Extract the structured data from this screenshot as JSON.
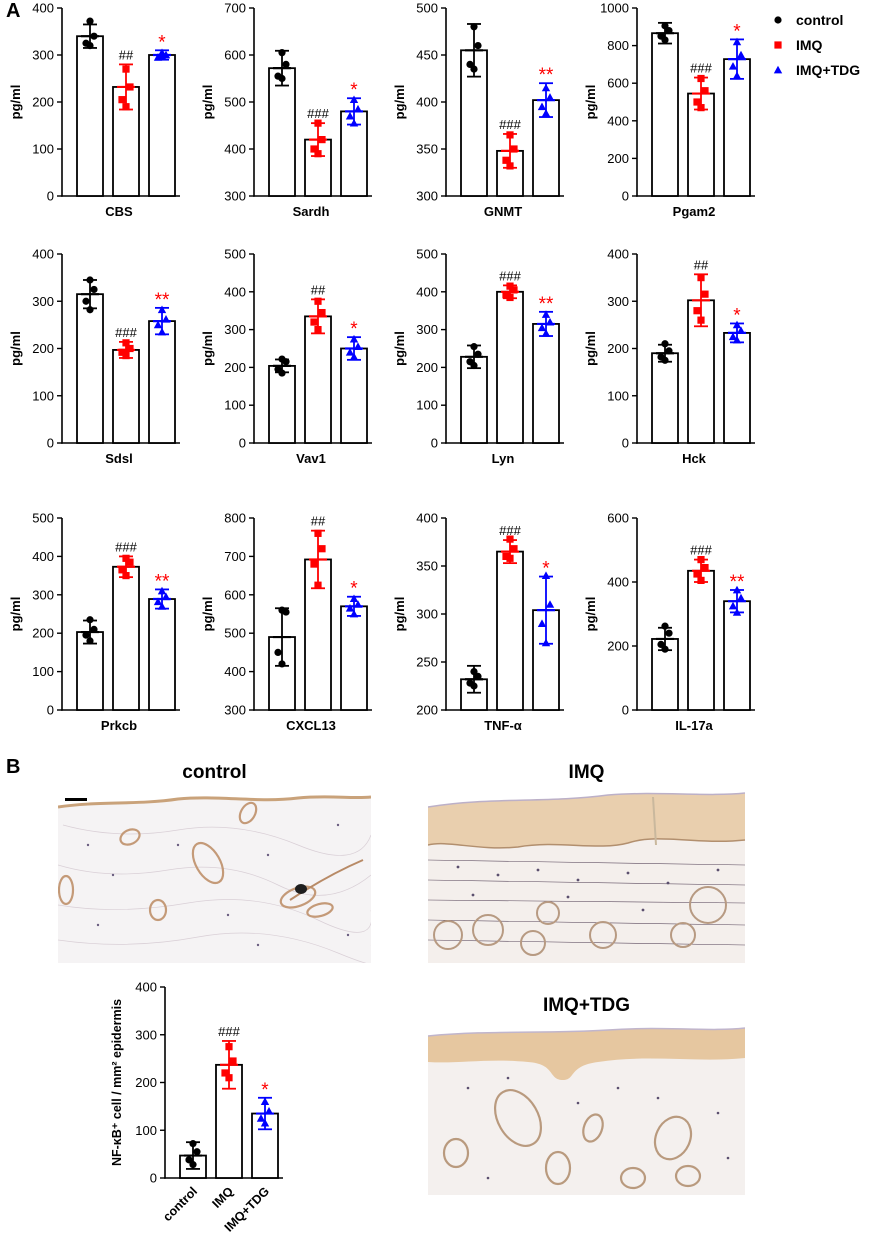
{
  "panels": {
    "a_label": "A",
    "b_label": "B"
  },
  "legend": [
    {
      "name": "control",
      "marker": "circle",
      "color": "#000000"
    },
    {
      "name": "IMQ",
      "marker": "square",
      "color": "#ff0000"
    },
    {
      "name": "IMQ+TDG",
      "marker": "triangle",
      "color": "#0000ff"
    }
  ],
  "colors": {
    "control": "#000000",
    "IMQ": "#ff0000",
    "IMQ+TDG": "#0000ff"
  },
  "chart_data": [
    {
      "type": "bar",
      "title": "",
      "xlabel": "CBS",
      "ylabel": "pg/ml",
      "ylim": [
        0,
        400
      ],
      "yticks": [
        0,
        100,
        200,
        300,
        400
      ],
      "categories": [
        "control",
        "IMQ",
        "IMQ+TDG"
      ],
      "values": [
        340,
        232,
        300
      ],
      "errors": [
        25,
        48,
        10
      ],
      "points": [
        [
          372,
          340,
          325,
          320
        ],
        [
          270,
          232,
          205,
          190
        ],
        [
          305,
          300,
          295,
          298
        ]
      ],
      "annotations": [
        {
          "text": "",
          "color": "#000000"
        },
        {
          "text": "##",
          "color": "#000000"
        },
        {
          "text": "*",
          "color": "#ff0000"
        }
      ]
    },
    {
      "type": "bar",
      "title": "",
      "xlabel": "Sardh",
      "ylabel": "pg/ml",
      "ylim": [
        300,
        700
      ],
      "yticks": [
        300,
        400,
        500,
        600,
        700
      ],
      "categories": [
        "control",
        "IMQ",
        "IMQ+TDG"
      ],
      "values": [
        572,
        420,
        480
      ],
      "errors": [
        37,
        35,
        28
      ],
      "points": [
        [
          605,
          580,
          555,
          550
        ],
        [
          455,
          420,
          400,
          390
        ],
        [
          505,
          485,
          470,
          455
        ]
      ],
      "annotations": [
        {
          "text": "",
          "color": "#000000"
        },
        {
          "text": "###",
          "color": "#000000"
        },
        {
          "text": "*",
          "color": "#ff0000"
        }
      ]
    },
    {
      "type": "bar",
      "title": "",
      "xlabel": "GNMT",
      "ylabel": "pg/ml",
      "ylim": [
        300,
        500
      ],
      "yticks": [
        300,
        350,
        400,
        450,
        500
      ],
      "categories": [
        "control",
        "IMQ",
        "IMQ+TDG"
      ],
      "values": [
        455,
        348,
        402
      ],
      "errors": [
        28,
        18,
        18
      ],
      "points": [
        [
          480,
          460,
          440,
          435
        ],
        [
          365,
          350,
          338,
          332
        ],
        [
          415,
          405,
          395,
          388
        ]
      ],
      "annotations": [
        {
          "text": "",
          "color": "#000000"
        },
        {
          "text": "###",
          "color": "#000000"
        },
        {
          "text": "**",
          "color": "#ff0000"
        }
      ]
    },
    {
      "type": "bar",
      "title": "",
      "xlabel": "Pgam2",
      "ylabel": "pg/ml",
      "ylim": [
        0,
        1000
      ],
      "yticks": [
        0,
        200,
        400,
        600,
        800,
        1000
      ],
      "categories": [
        "control",
        "IMQ",
        "IMQ+TDG"
      ],
      "values": [
        866,
        545,
        728
      ],
      "errors": [
        55,
        85,
        105
      ],
      "points": [
        [
          905,
          880,
          850,
          830
        ],
        [
          625,
          560,
          500,
          470
        ],
        [
          820,
          750,
          690,
          640
        ]
      ],
      "annotations": [
        {
          "text": "",
          "color": "#000000"
        },
        {
          "text": "###",
          "color": "#000000"
        },
        {
          "text": "*",
          "color": "#ff0000"
        }
      ]
    },
    {
      "type": "bar",
      "title": "",
      "xlabel": "Sdsl",
      "ylabel": "pg/ml",
      "ylim": [
        0,
        400
      ],
      "yticks": [
        0,
        100,
        200,
        300,
        400
      ],
      "categories": [
        "control",
        "IMQ",
        "IMQ+TDG"
      ],
      "values": [
        315,
        197,
        258
      ],
      "errors": [
        30,
        17,
        28
      ],
      "points": [
        [
          345,
          325,
          300,
          282
        ],
        [
          212,
          200,
          192,
          185
        ],
        [
          282,
          262,
          250,
          235
        ]
      ],
      "annotations": [
        {
          "text": "",
          "color": "#000000"
        },
        {
          "text": "###",
          "color": "#000000"
        },
        {
          "text": "**",
          "color": "#ff0000"
        }
      ]
    },
    {
      "type": "bar",
      "title": "",
      "xlabel": "Vav1",
      "ylabel": "pg/ml",
      "ylim": [
        0,
        500
      ],
      "yticks": [
        0,
        100,
        200,
        300,
        400,
        500
      ],
      "categories": [
        "control",
        "IMQ",
        "IMQ+TDG"
      ],
      "values": [
        204,
        335,
        250
      ],
      "errors": [
        17,
        45,
        30
      ],
      "points": [
        [
          222,
          215,
          195,
          185
        ],
        [
          375,
          345,
          320,
          300
        ],
        [
          275,
          255,
          240,
          228
        ]
      ],
      "annotations": [
        {
          "text": "",
          "color": "#000000"
        },
        {
          "text": "##",
          "color": "#000000"
        },
        {
          "text": "*",
          "color": "#ff0000"
        }
      ]
    },
    {
      "type": "bar",
      "title": "",
      "xlabel": "Lyn",
      "ylabel": "pg/ml",
      "ylim": [
        0,
        500
      ],
      "yticks": [
        0,
        100,
        200,
        300,
        400,
        500
      ],
      "categories": [
        "control",
        "IMQ",
        "IMQ+TDG"
      ],
      "values": [
        228,
        400,
        315
      ],
      "errors": [
        30,
        17,
        32
      ],
      "points": [
        [
          255,
          235,
          215,
          205
        ],
        [
          415,
          405,
          392,
          385
        ],
        [
          340,
          320,
          305,
          290
        ]
      ],
      "annotations": [
        {
          "text": "",
          "color": "#000000"
        },
        {
          "text": "###",
          "color": "#000000"
        },
        {
          "text": "**",
          "color": "#ff0000"
        }
      ]
    },
    {
      "type": "bar",
      "title": "",
      "xlabel": "Hck",
      "ylabel": "pg/ml",
      "ylim": [
        0,
        400
      ],
      "yticks": [
        0,
        100,
        200,
        300,
        400
      ],
      "categories": [
        "control",
        "IMQ",
        "IMQ+TDG"
      ],
      "values": [
        190,
        302,
        233
      ],
      "errors": [
        18,
        55,
        20
      ],
      "points": [
        [
          210,
          195,
          182,
          175
        ],
        [
          350,
          315,
          280,
          260
        ],
        [
          250,
          238,
          225,
          218
        ]
      ],
      "annotations": [
        {
          "text": "",
          "color": "#000000"
        },
        {
          "text": "##",
          "color": "#000000"
        },
        {
          "text": "*",
          "color": "#ff0000"
        }
      ]
    },
    {
      "type": "bar",
      "title": "",
      "xlabel": "Prkcb",
      "ylabel": "pg/ml",
      "ylim": [
        0,
        500
      ],
      "yticks": [
        0,
        100,
        200,
        300,
        400,
        500
      ],
      "categories": [
        "control",
        "IMQ",
        "IMQ+TDG"
      ],
      "values": [
        203,
        373,
        289
      ],
      "errors": [
        30,
        27,
        25
      ],
      "points": [
        [
          235,
          210,
          195,
          180
        ],
        [
          395,
          385,
          365,
          350
        ],
        [
          310,
          295,
          282,
          270
        ]
      ],
      "annotations": [
        {
          "text": "",
          "color": "#000000"
        },
        {
          "text": "###",
          "color": "#000000"
        },
        {
          "text": "**",
          "color": "#ff0000"
        }
      ]
    },
    {
      "type": "bar",
      "title": "",
      "xlabel": "CXCL13",
      "ylabel": "pg/ml",
      "ylim": [
        300,
        800
      ],
      "yticks": [
        300,
        400,
        500,
        600,
        700,
        800
      ],
      "categories": [
        "control",
        "IMQ",
        "IMQ+TDG"
      ],
      "values": [
        490,
        692,
        570
      ],
      "errors": [
        75,
        75,
        25
      ],
      "points": [
        [
          560,
          555,
          450,
          420
        ],
        [
          760,
          720,
          680,
          625
        ],
        [
          590,
          575,
          565,
          550
        ]
      ],
      "annotations": [
        {
          "text": "",
          "color": "#000000"
        },
        {
          "text": "##",
          "color": "#000000"
        },
        {
          "text": "*",
          "color": "#ff0000"
        }
      ]
    },
    {
      "type": "bar",
      "title": "",
      "xlabel": "TNF-α",
      "ylabel": "pg/ml",
      "ylim": [
        200,
        400
      ],
      "yticks": [
        200,
        250,
        300,
        350,
        400
      ],
      "categories": [
        "control",
        "IMQ",
        "IMQ+TDG"
      ],
      "values": [
        232,
        365,
        304
      ],
      "errors": [
        14,
        12,
        35
      ],
      "points": [
        [
          240,
          235,
          228,
          225
        ],
        [
          378,
          368,
          360,
          358
        ],
        [
          340,
          310,
          290,
          270
        ]
      ],
      "annotations": [
        {
          "text": "",
          "color": "#000000"
        },
        {
          "text": "###",
          "color": "#000000"
        },
        {
          "text": "*",
          "color": "#ff0000"
        }
      ]
    },
    {
      "type": "bar",
      "title": "",
      "xlabel": "IL-17a",
      "ylabel": "pg/ml",
      "ylim": [
        0,
        600
      ],
      "yticks": [
        0,
        200,
        400,
        600
      ],
      "categories": [
        "control",
        "IMQ",
        "IMQ+TDG"
      ],
      "values": [
        222,
        435,
        340
      ],
      "errors": [
        35,
        35,
        35
      ],
      "points": [
        [
          262,
          240,
          205,
          190
        ],
        [
          470,
          445,
          425,
          405
        ],
        [
          375,
          350,
          325,
          305
        ]
      ],
      "annotations": [
        {
          "text": "",
          "color": "#000000"
        },
        {
          "text": "###",
          "color": "#000000"
        },
        {
          "text": "**",
          "color": "#ff0000"
        }
      ]
    },
    {
      "type": "bar",
      "title": "",
      "xlabel": "",
      "ylabel": "NF-κB⁺ cell / mm² epidermis",
      "ylim": [
        0,
        400
      ],
      "yticks": [
        0,
        100,
        200,
        300,
        400
      ],
      "categories": [
        "control",
        "IMQ",
        "IMQ+TDG"
      ],
      "category_labels_rotated": true,
      "values": [
        47,
        237,
        135
      ],
      "errors": [
        28,
        50,
        33
      ],
      "points": [
        [
          72,
          55,
          38,
          28
        ],
        [
          275,
          245,
          220,
          210
        ],
        [
          160,
          140,
          125,
          115
        ]
      ],
      "annotations": [
        {
          "text": "",
          "color": "#000000"
        },
        {
          "text": "###",
          "color": "#000000"
        },
        {
          "text": "*",
          "color": "#ff0000"
        }
      ]
    }
  ],
  "micrographs": [
    {
      "label": "control",
      "scale_bar": true
    },
    {
      "label": "IMQ",
      "scale_bar": false
    },
    {
      "label": "IMQ+TDG",
      "scale_bar": false
    }
  ]
}
